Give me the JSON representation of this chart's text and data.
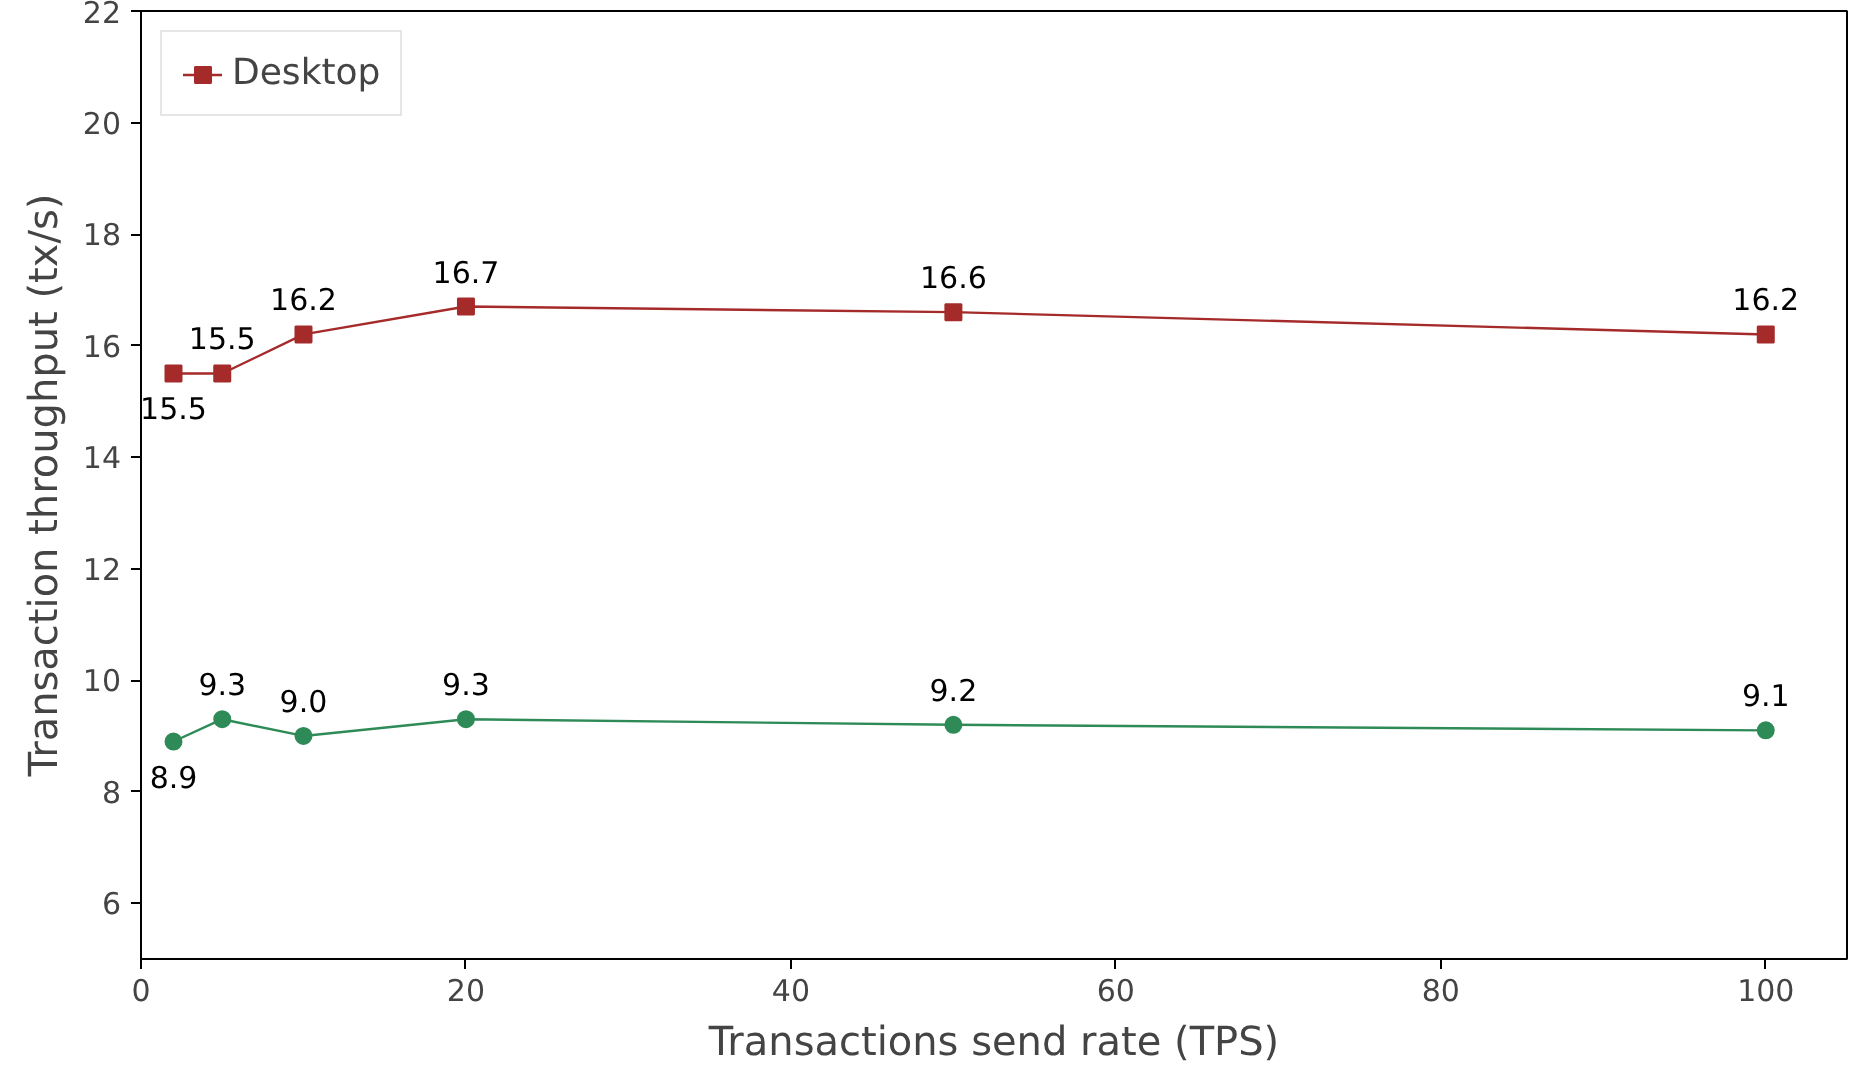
{
  "chart_data": {
    "type": "line",
    "xlabel": "Transactions send rate (TPS)",
    "ylabel": "Transaction throughput (tx/s)",
    "x": [
      2,
      5,
      10,
      20,
      50,
      100
    ],
    "series": [
      {
        "color": "#2e8b57",
        "marker": "circle",
        "values": [
          8.9,
          9.3,
          9.0,
          9.3,
          9.2,
          9.1
        ],
        "value_labels": [
          "8.9",
          "9.3",
          "9.0",
          "9.3",
          "9.2",
          "9.1"
        ]
      },
      {
        "name": "Desktop",
        "color": "#a52a2a",
        "marker": "square",
        "values": [
          15.5,
          15.5,
          16.2,
          16.7,
          16.6,
          16.2
        ],
        "value_labels": [
          "15.5",
          "15.5",
          "16.2",
          "16.7",
          "16.6",
          "16.2"
        ]
      }
    ],
    "xlim": [
      0,
      105
    ],
    "ylim": [
      5,
      22
    ],
    "xticks": [
      0,
      20,
      40,
      60,
      80,
      100
    ],
    "yticks": [
      6,
      8,
      10,
      12,
      14,
      16,
      18,
      20,
      22
    ],
    "grid": false,
    "legend": "top left",
    "line_style": "solid"
  }
}
